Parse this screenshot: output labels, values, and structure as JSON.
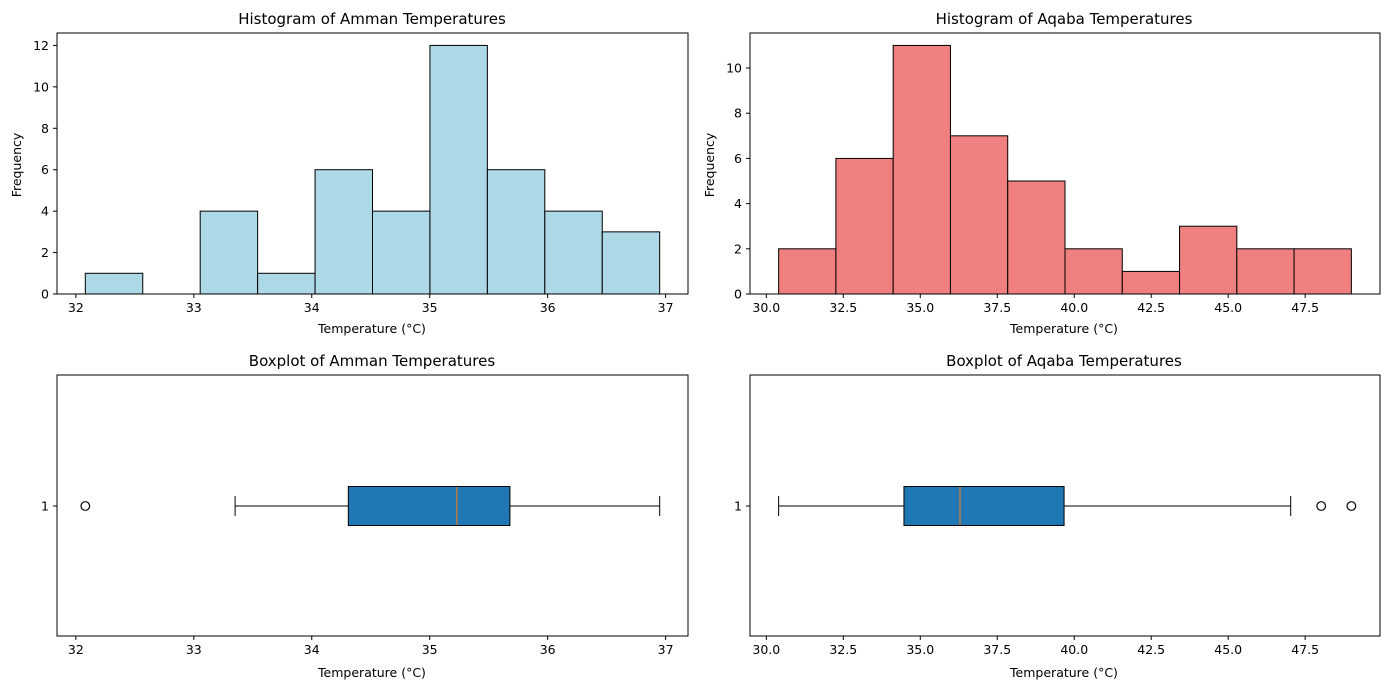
{
  "figure": {
    "background": "#ffffff"
  },
  "chart_data": [
    {
      "type": "bar",
      "subtype": "histogram",
      "title": "Histogram of Amman Temperatures",
      "xlabel": "Temperature (°C)",
      "ylabel": "Frequency",
      "color": "#add8e6",
      "edgecolor": "#000000",
      "bin_edges": [
        32.08,
        32.567,
        33.054,
        33.541,
        34.028,
        34.515,
        35.002,
        35.489,
        35.976,
        36.463,
        36.95
      ],
      "values": [
        1,
        0,
        4,
        1,
        6,
        4,
        12,
        6,
        4,
        3
      ],
      "xlim": [
        31.84,
        37.19
      ],
      "ylim": [
        0,
        12.6
      ],
      "xticks": [
        32,
        33,
        34,
        35,
        36,
        37
      ],
      "xtick_labels": [
        "32",
        "33",
        "34",
        "35",
        "36",
        "37"
      ],
      "yticks": [
        0,
        2,
        4,
        6,
        8,
        10,
        12
      ],
      "ytick_labels": [
        "0",
        "2",
        "4",
        "6",
        "8",
        "10",
        "12"
      ],
      "grid": false,
      "legend": "none"
    },
    {
      "type": "bar",
      "subtype": "histogram",
      "title": "Histogram of Aqaba Temperatures",
      "xlabel": "Temperature (°C)",
      "ylabel": "Frequency",
      "color": "#f08080",
      "edgecolor": "#000000",
      "bin_edges": [
        30.4,
        32.26,
        34.12,
        35.98,
        37.84,
        39.7,
        41.56,
        43.42,
        45.28,
        47.14,
        49.0
      ],
      "values": [
        2,
        6,
        11,
        7,
        5,
        2,
        1,
        3,
        2,
        2
      ],
      "xlim": [
        29.47,
        49.93
      ],
      "ylim": [
        0,
        11.55
      ],
      "xticks": [
        30.0,
        32.5,
        35.0,
        37.5,
        40.0,
        42.5,
        45.0,
        47.5
      ],
      "xtick_labels": [
        "30.0",
        "32.5",
        "35.0",
        "37.5",
        "40.0",
        "42.5",
        "45.0",
        "47.5"
      ],
      "yticks": [
        0,
        2,
        4,
        6,
        8,
        10
      ],
      "ytick_labels": [
        "0",
        "2",
        "4",
        "6",
        "8",
        "10"
      ],
      "grid": false,
      "legend": "none"
    },
    {
      "type": "boxplot",
      "title": "Boxplot of Amman Temperatures",
      "xlabel": "Temperature (°C)",
      "orientation": "horizontal",
      "box_color": "#1f77b4",
      "median_color": "#ff7f0e",
      "category_label": "1",
      "whisker_low": 33.35,
      "q1": 34.31,
      "median": 35.23,
      "q3": 35.68,
      "whisker_high": 36.95,
      "outliers": [
        32.08
      ],
      "xlim": [
        31.84,
        37.19
      ],
      "xticks": [
        32,
        33,
        34,
        35,
        36,
        37
      ],
      "xtick_labels": [
        "32",
        "33",
        "34",
        "35",
        "36",
        "37"
      ],
      "grid": false,
      "legend": "none"
    },
    {
      "type": "boxplot",
      "title": "Boxplot of Aqaba Temperatures",
      "xlabel": "Temperature (°C)",
      "orientation": "horizontal",
      "box_color": "#1f77b4",
      "median_color": "#ff7f0e",
      "category_label": "1",
      "whisker_low": 30.4,
      "q1": 34.47,
      "median": 36.29,
      "q3": 39.67,
      "whisker_high": 47.03,
      "outliers": [
        48.02,
        49.0
      ],
      "xlim": [
        29.47,
        49.93
      ],
      "xticks": [
        30.0,
        32.5,
        35.0,
        37.5,
        40.0,
        42.5,
        45.0,
        47.5
      ],
      "xtick_labels": [
        "30.0",
        "32.5",
        "35.0",
        "37.5",
        "40.0",
        "42.5",
        "45.0",
        "47.5"
      ],
      "grid": false,
      "legend": "none"
    }
  ]
}
